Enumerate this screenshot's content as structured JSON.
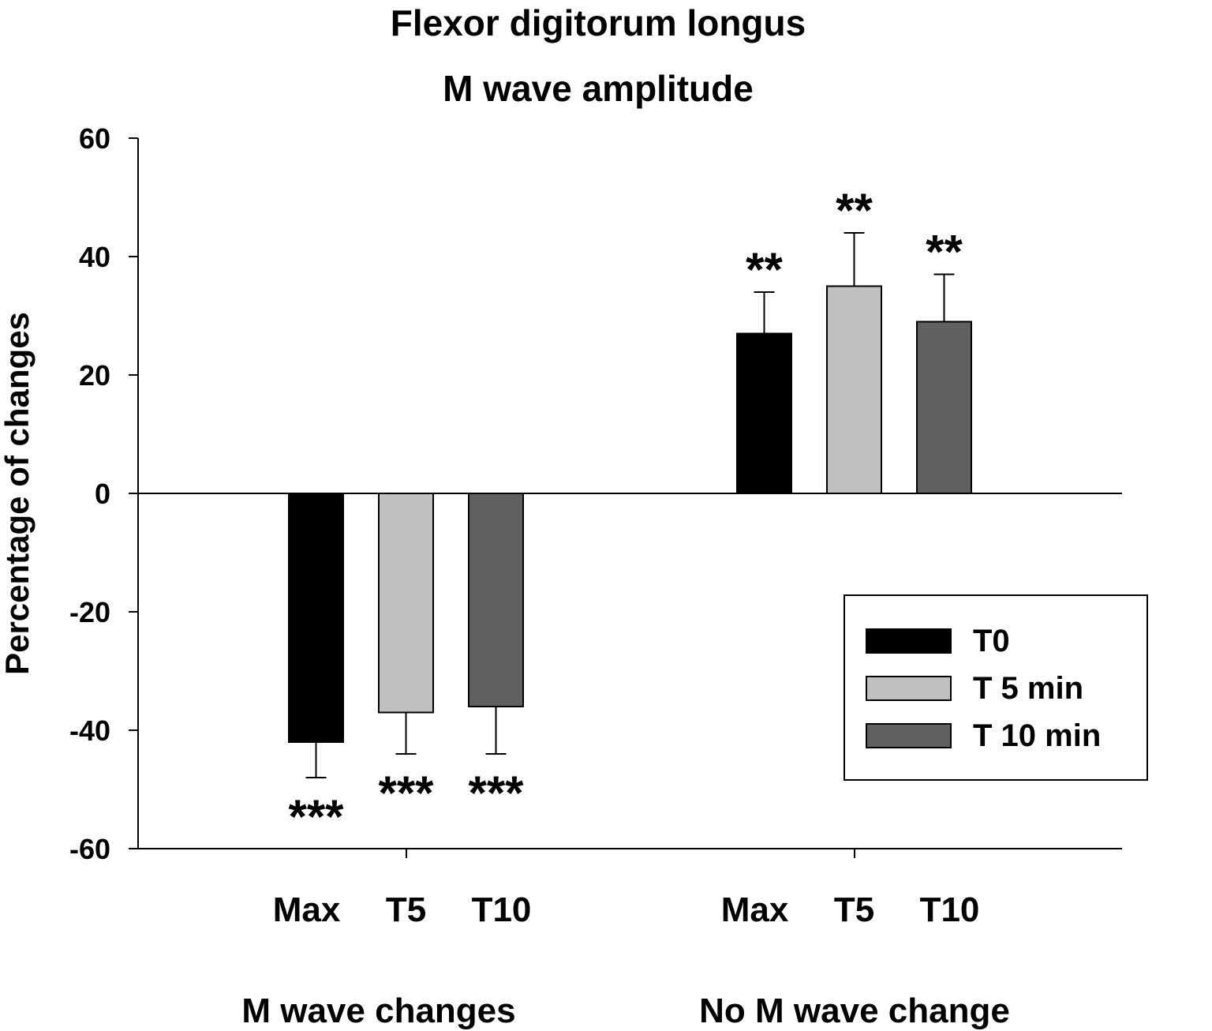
{
  "chart_data": {
    "type": "bar",
    "title": [
      "Flexor digitorum longus",
      "M wave amplitude"
    ],
    "ylabel": "Percentage of changes",
    "xlabel": "",
    "ylim": [
      -60,
      60
    ],
    "yticks": [
      60,
      40,
      20,
      0,
      -20,
      -40,
      -60
    ],
    "grid": false,
    "legend_position": "bottom-right",
    "groups": [
      {
        "name": "M wave changes",
        "categories": [
          "Max",
          "T5",
          "T10"
        ],
        "values": [
          -42,
          -37,
          -36
        ],
        "errors": [
          6,
          7,
          8
        ],
        "significance": [
          "***",
          "***",
          "***"
        ]
      },
      {
        "name": "No M wave change",
        "categories": [
          "Max",
          "T5",
          "T10"
        ],
        "values": [
          27,
          35,
          29
        ],
        "errors": [
          7,
          9,
          8
        ],
        "significance": [
          "**",
          "**",
          "**"
        ]
      }
    ],
    "series": [
      {
        "name": "T0",
        "color": "#000000"
      },
      {
        "name": "T 5 min",
        "color": "#c0c0c0"
      },
      {
        "name": "T 10 min",
        "color": "#606060"
      }
    ]
  }
}
